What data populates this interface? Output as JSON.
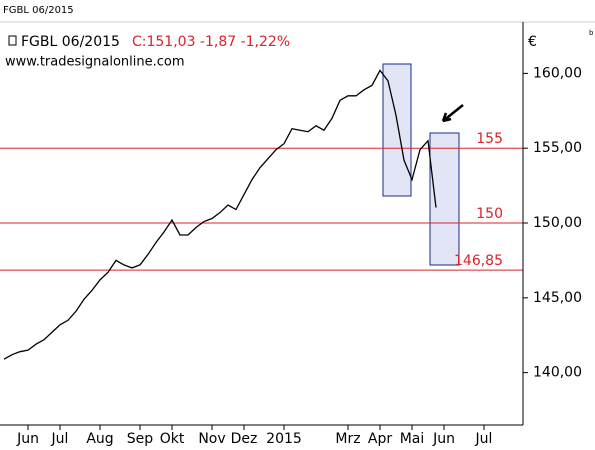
{
  "window_title": "FGBL 06/2015",
  "chart_data": {
    "type": "line",
    "title": "FGBL 06/2015",
    "subtitle": "C:151,03 -1,87 -1,22%",
    "source": "www.tradesignalonline.com",
    "currency": "€",
    "corner_mark": "b",
    "categories": [
      null,
      null,
      null,
      "Jun",
      null,
      null,
      null,
      "Jul",
      null,
      null,
      null,
      null,
      "Aug",
      null,
      null,
      null,
      null,
      "Sep",
      null,
      null,
      null,
      "Okt",
      null,
      null,
      null,
      null,
      "Nov",
      null,
      null,
      null,
      "Dez",
      null,
      null,
      null,
      null,
      "2015",
      null,
      null,
      null,
      null,
      null,
      null,
      null,
      "Mrz",
      null,
      null,
      null,
      "Apr",
      null,
      null,
      null,
      "Mai",
      null,
      null,
      null,
      "Jun",
      null,
      null,
      null,
      null,
      "Jul"
    ],
    "series": [
      {
        "name": "FGBL 06/2015",
        "color": "#000000",
        "values": [
          140.9,
          141.2,
          141.4,
          141.5,
          141.9,
          142.2,
          142.7,
          143.2,
          143.5,
          144.1,
          144.9,
          145.5,
          146.2,
          146.7,
          147.5,
          147.2,
          147.0,
          147.2,
          147.9,
          148.7,
          149.4,
          150.2,
          149.2,
          149.2,
          149.7,
          150.1,
          150.3,
          150.7,
          151.2,
          150.9,
          151.9,
          152.9,
          153.7,
          154.3,
          154.9,
          155.3,
          156.3,
          156.2,
          156.1,
          156.5,
          156.2,
          157.0,
          158.2,
          158.5,
          158.5,
          158.9,
          159.2,
          160.2,
          159.5,
          157.2,
          154.2,
          152.9,
          154.9,
          155.5,
          151.03,
          null,
          null,
          null,
          null,
          null,
          null
        ]
      }
    ],
    "hlines": [
      {
        "value": 155,
        "label": "155"
      },
      {
        "value": 150,
        "label": "150"
      },
      {
        "value": 146.85,
        "label": "146,85"
      }
    ],
    "hline_color": "#d9232a",
    "ylim": [
      136.5,
      162.9
    ],
    "yticks": [
      {
        "value": 140,
        "label": "140,00"
      },
      {
        "value": 145,
        "label": "145,00"
      },
      {
        "value": 150,
        "label": "150,00"
      },
      {
        "value": 155,
        "label": "155,00"
      },
      {
        "value": 160,
        "label": "160,00"
      }
    ]
  }
}
